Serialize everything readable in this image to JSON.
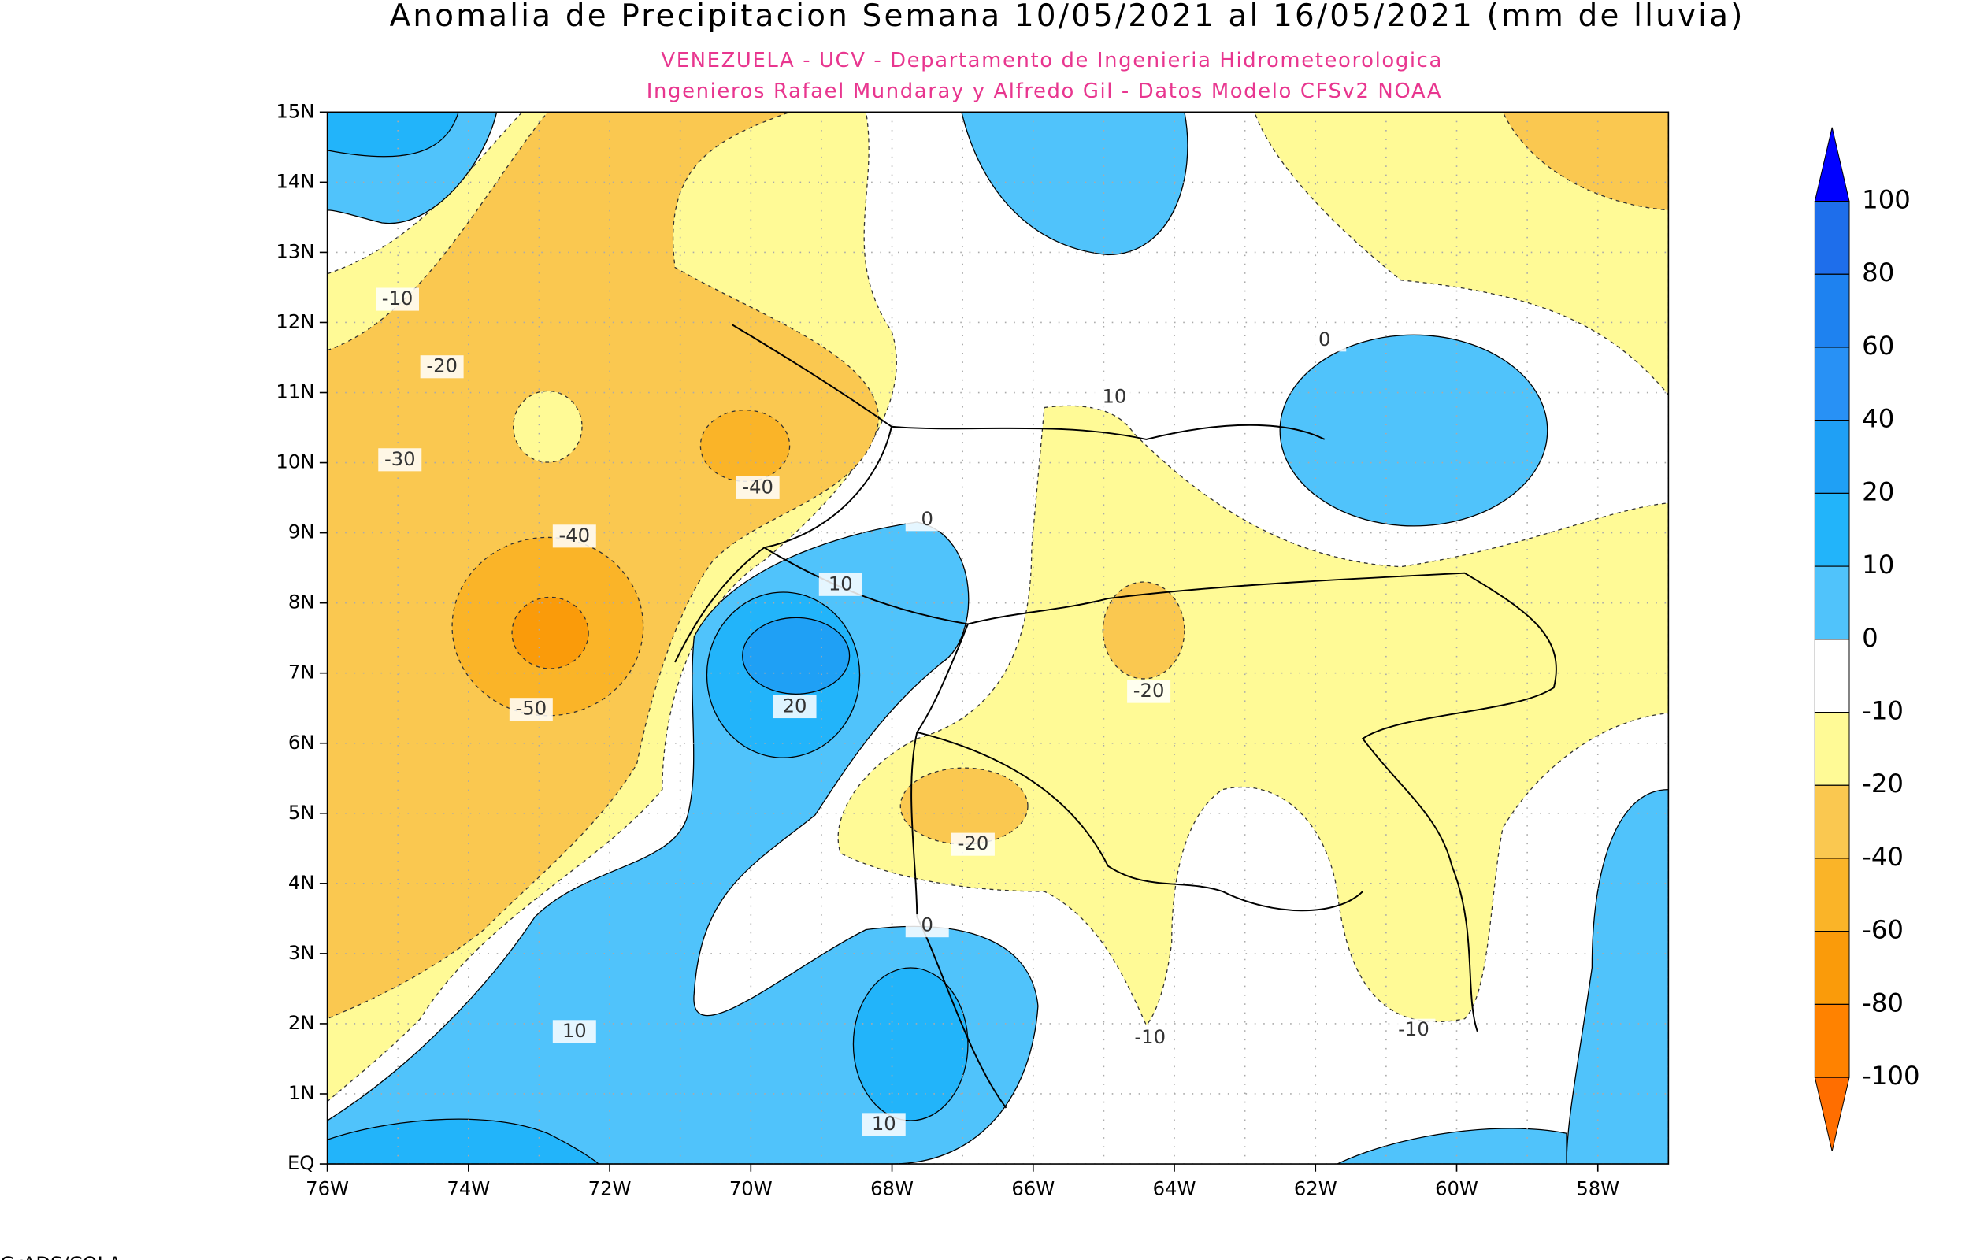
{
  "map": {
    "title": "Anomalia de Precipitacion Semana 10/05/2021 al 16/05/2021 (mm de lluvia)",
    "subtitle": [
      "VENEZUELA - UCV - Departamento de Ingenieria Hidrometeorologica",
      "Ingenieros Rafael Mundaray y Alfredo Gil - Datos Modelo CFSv2 NOAA"
    ],
    "xlim": [
      -76,
      -57
    ],
    "ylim": [
      0,
      15
    ],
    "xticks": [
      {
        "value": -76,
        "label": "76W"
      },
      {
        "value": -74,
        "label": "74W"
      },
      {
        "value": -72,
        "label": "72W"
      },
      {
        "value": -70,
        "label": "70W"
      },
      {
        "value": -68,
        "label": "68W"
      },
      {
        "value": -66,
        "label": "66W"
      },
      {
        "value": -64,
        "label": "64W"
      },
      {
        "value": -62,
        "label": "62W"
      },
      {
        "value": -60,
        "label": "60W"
      },
      {
        "value": -58,
        "label": "58W"
      }
    ],
    "yticks": [
      {
        "value": 15,
        "label": "15N"
      },
      {
        "value": 14,
        "label": "14N"
      },
      {
        "value": 13,
        "label": "13N"
      },
      {
        "value": 12,
        "label": "12N"
      },
      {
        "value": 11,
        "label": "11N"
      },
      {
        "value": 10,
        "label": "10N"
      },
      {
        "value": 9,
        "label": "9N"
      },
      {
        "value": 8,
        "label": "8N"
      },
      {
        "value": 7,
        "label": "7N"
      },
      {
        "value": 6,
        "label": "6N"
      },
      {
        "value": 5,
        "label": "5N"
      },
      {
        "value": 4,
        "label": "4N"
      },
      {
        "value": 3,
        "label": "3N"
      },
      {
        "value": 2,
        "label": "2N"
      },
      {
        "value": 1,
        "label": "1N"
      },
      {
        "value": 0,
        "label": "EQ"
      }
    ],
    "grid": true,
    "colorbar": {
      "levels": [
        100,
        80,
        60,
        40,
        20,
        10,
        0,
        -10,
        -20,
        -40,
        -60,
        -80,
        -100
      ],
      "colors": [
        "#0000ff",
        "#1e6eeb",
        "#1e82f0",
        "#2891f5",
        "#1fa0f5",
        "#22b4fa",
        "#50c3fb",
        "#ffffff",
        "#fffa96",
        "#fac850",
        "#fab428",
        "#fa9b0a",
        "#ff8200",
        "#ff6e00"
      ]
    },
    "contour_labels": [
      "-10",
      "-20",
      "-30",
      "-40",
      "-40",
      "-50",
      "0",
      "10",
      "20",
      "-20",
      "-20",
      "0",
      "10",
      "10",
      "-10",
      "-10",
      "0",
      "10"
    ],
    "footer": "GrADS/COLA"
  }
}
